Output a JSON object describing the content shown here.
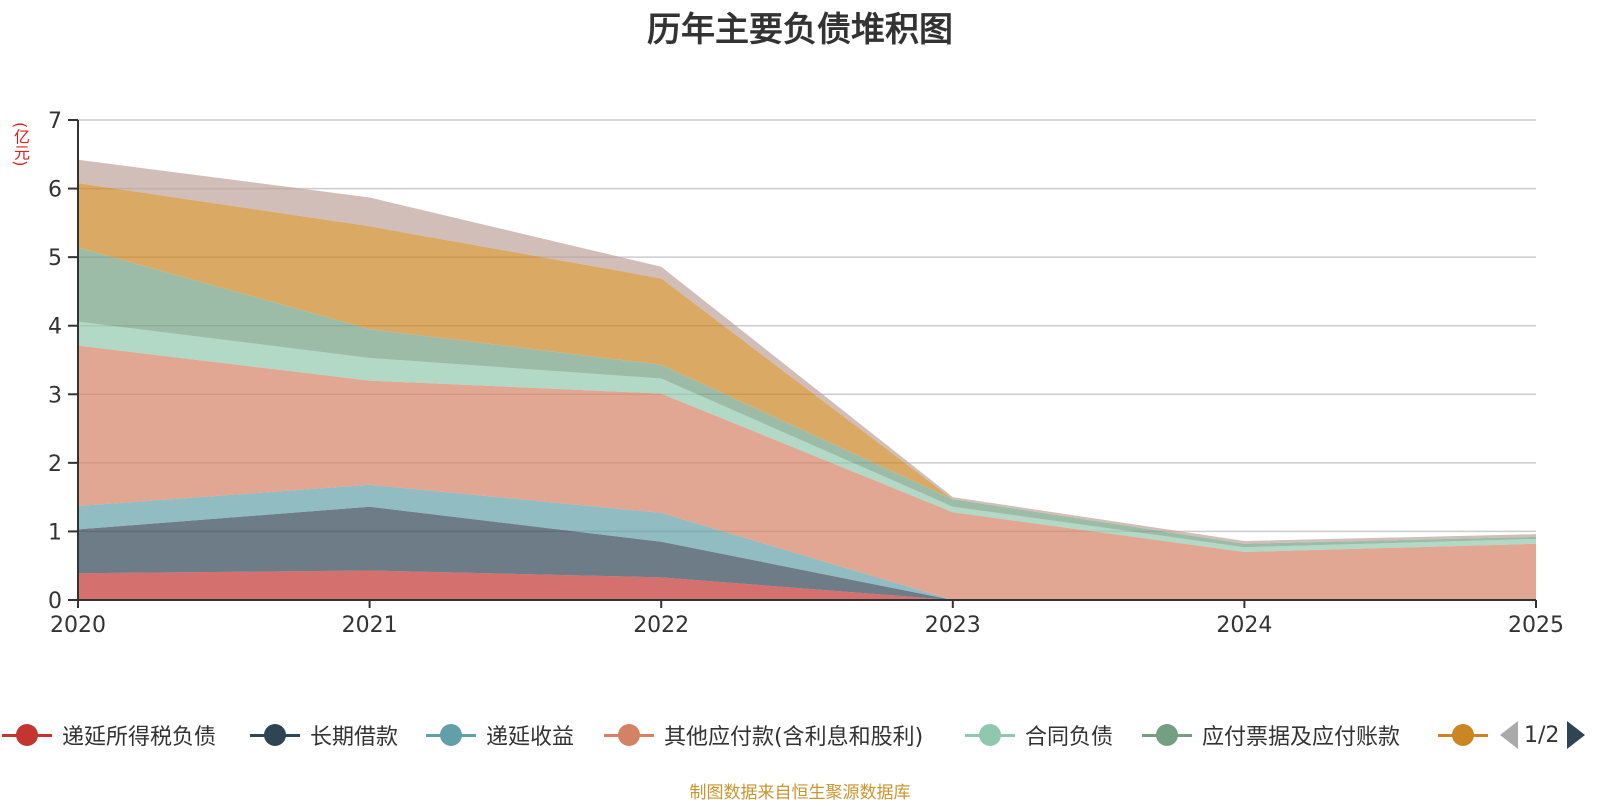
{
  "chart_data": {
    "type": "area",
    "stacked": true,
    "title": "历年主要负债堆积图",
    "ylabel": "(亿元)",
    "xlabel": "",
    "categories": [
      "2020",
      "2021",
      "2022",
      "2023",
      "2024",
      "2025"
    ],
    "ylim": [
      0,
      7
    ],
    "yticks": [
      "0",
      "1",
      "2",
      "3",
      "4",
      "5",
      "6",
      "7"
    ],
    "grid": true,
    "legend_position": "bottom",
    "series": [
      {
        "name": "递延所得税负债",
        "color": "#c23531",
        "values": [
          0.39,
          0.43,
          0.33,
          0,
          0,
          0
        ]
      },
      {
        "name": "长期借款",
        "color": "#2f4554",
        "values": [
          0.64,
          0.93,
          0.52,
          0,
          0,
          0
        ]
      },
      {
        "name": "递延收益",
        "color": "#61a0a8",
        "values": [
          0.34,
          0.32,
          0.42,
          0,
          0,
          0
        ]
      },
      {
        "name": "其他应付款(含利息和股利)",
        "color": "#d48265",
        "values": [
          2.34,
          1.52,
          1.74,
          1.28,
          0.7,
          0.82
        ]
      },
      {
        "name": "合同负债",
        "color": "#91c7ae",
        "values": [
          0.35,
          0.33,
          0.22,
          0.08,
          0.07,
          0.07
        ]
      },
      {
        "name": "应付票据及应付账款",
        "color": "#749f83",
        "values": [
          1.08,
          0.42,
          0.2,
          0.11,
          0.05,
          0.03
        ]
      },
      {
        "name": "",
        "color": "#ca8622",
        "values": [
          0.94,
          1.5,
          1.26,
          0,
          0,
          0
        ]
      },
      {
        "name": "",
        "color": "#bda29a",
        "values": [
          0.34,
          0.42,
          0.17,
          0.03,
          0.04,
          0.04
        ]
      }
    ]
  },
  "legend": {
    "visible_items": [
      {
        "label": "递延所得税负债",
        "color": "#c23531"
      },
      {
        "label": "长期借款",
        "color": "#2f4554"
      },
      {
        "label": "递延收益",
        "color": "#61a0a8"
      },
      {
        "label": "其他应付款(含利息和股利)",
        "color": "#d48265"
      },
      {
        "label": "合同负债",
        "color": "#91c7ae"
      },
      {
        "label": "应付票据及应付账款",
        "color": "#749f83"
      },
      {
        "label": "",
        "color": "#ca8622"
      }
    ],
    "page_indicator": "1/2"
  },
  "footer": "制图数据来自恒生聚源数据库"
}
